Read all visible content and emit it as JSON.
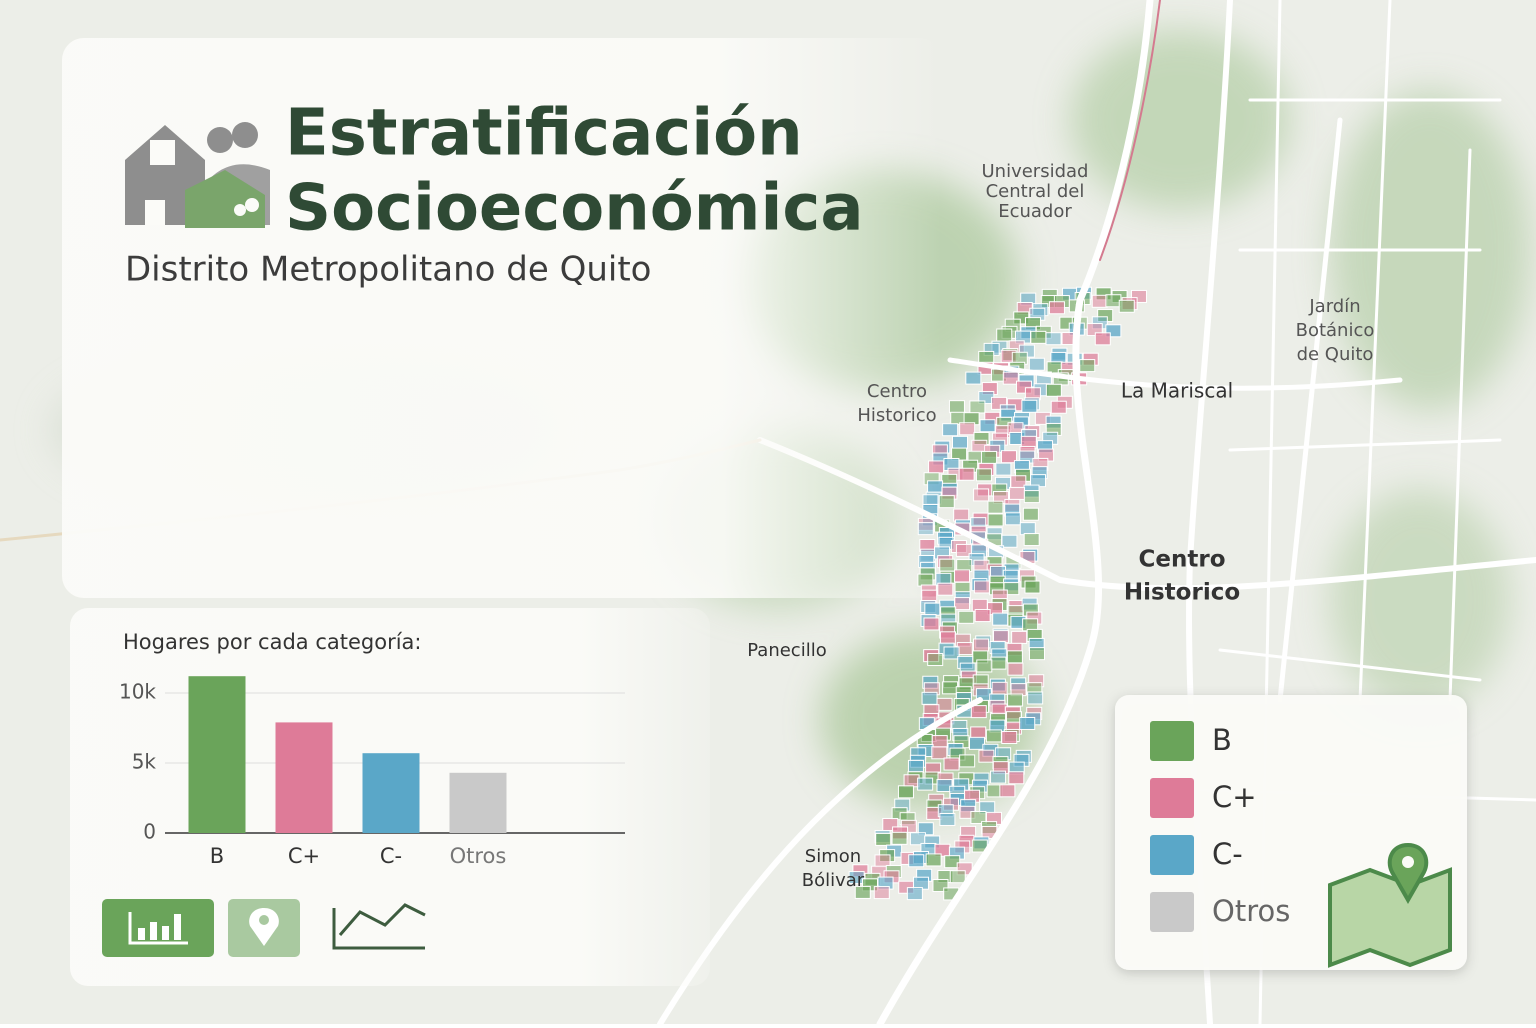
{
  "header": {
    "title": [
      "Estratificación",
      "Socioeconómica"
    ],
    "subtitle": "Distrito Metropolitano de Quito"
  },
  "map": {
    "labels": [
      [
        "Universidad",
        "Central del",
        "Ecuador"
      ],
      [
        "Jardín",
        "Botánico",
        "de Quito"
      ],
      [
        "Centro",
        "Historico"
      ],
      [
        "La Mariscal"
      ],
      [
        "Centro",
        "Historico"
      ],
      [
        "Panecillo"
      ],
      [
        "Simon",
        "Bólivar"
      ]
    ]
  },
  "chart_data": {
    "type": "bar",
    "title": "Hogares por cada categoría:",
    "categories": [
      "B",
      "C+",
      "C-",
      "Otros"
    ],
    "values": [
      11200,
      7900,
      5700,
      4300
    ],
    "colors": [
      "#6aa45a",
      "#de7b98",
      "#5aa7c8",
      "#c9c9c9"
    ],
    "ylim": [
      0,
      12000
    ],
    "yticks": [
      0,
      {
        "value": 5000,
        "label": "5k"
      },
      {
        "value": 10000,
        "label": "10k"
      }
    ],
    "grid": true
  }
}
